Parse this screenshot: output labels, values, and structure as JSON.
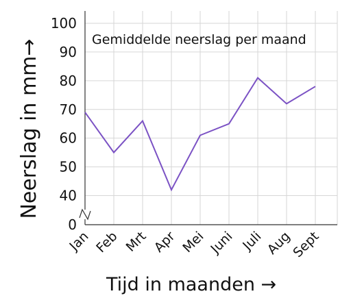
{
  "chart_data": {
    "type": "line",
    "title": "Gemiddelde neerslag per maand",
    "xlabel": "Tijd in maanden →",
    "ylabel": "Neerslag in mm→",
    "categories": [
      "Jan",
      "Feb",
      "Mrt",
      "Apr",
      "Mei",
      "Juni",
      "Juli",
      "Aug",
      "Sept"
    ],
    "series": [
      {
        "values": [
          69,
          55,
          66,
          42,
          61,
          65,
          81,
          72,
          78
        ],
        "color": "#7b52c4"
      }
    ],
    "yticks": [
      "0",
      "40",
      "50",
      "60",
      "70",
      "80",
      "90",
      "100"
    ],
    "ylim": [
      40,
      100
    ],
    "axis_break": true,
    "grid": true
  }
}
